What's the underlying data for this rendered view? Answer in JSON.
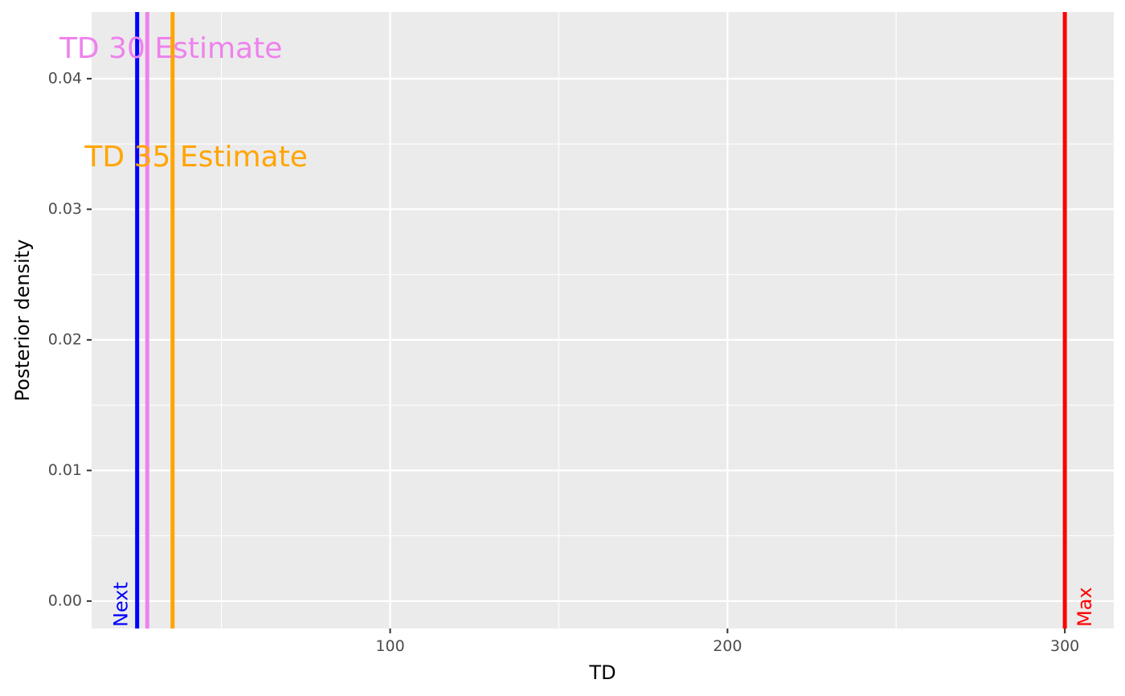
{
  "chart_data": {
    "type": "line",
    "xlabel": "TD",
    "ylabel": "Posterior density",
    "xlim": [
      11.5,
      314.5
    ],
    "ylim": [
      -0.0021,
      0.0451
    ],
    "x_ticks": [
      100,
      200,
      300
    ],
    "x_tick_labels": [
      "100",
      "200",
      "300"
    ],
    "x_minor_ticks": [
      50,
      150,
      250
    ],
    "y_ticks": [
      0.0,
      0.01,
      0.02,
      0.03,
      0.04
    ],
    "y_tick_labels": [
      "0.00",
      "0.01",
      "0.02",
      "0.03",
      "0.04"
    ],
    "y_minor_ticks": [
      0.005,
      0.015,
      0.025,
      0.035
    ],
    "grid": true,
    "background": "#ebebeb",
    "vlines": [
      {
        "name": "Next",
        "x": 25,
        "color": "#0000ff",
        "label": "Next"
      },
      {
        "name": "TD 30 Estimate",
        "x": 28,
        "color": "#ee82ee"
      },
      {
        "name": "TD 35 Estimate",
        "x": 35.5,
        "color": "#ffa500"
      },
      {
        "name": "Max",
        "x": 300,
        "color": "#ff0000",
        "label": "Max"
      }
    ],
    "annotations": [
      {
        "text": "TD 30 Estimate",
        "x": 35,
        "y": 0.0422,
        "color": "#ee82ee"
      },
      {
        "text": "TD 35 Estimate",
        "x": 42.5,
        "y": 0.0339,
        "color": "#ffa500"
      }
    ]
  }
}
